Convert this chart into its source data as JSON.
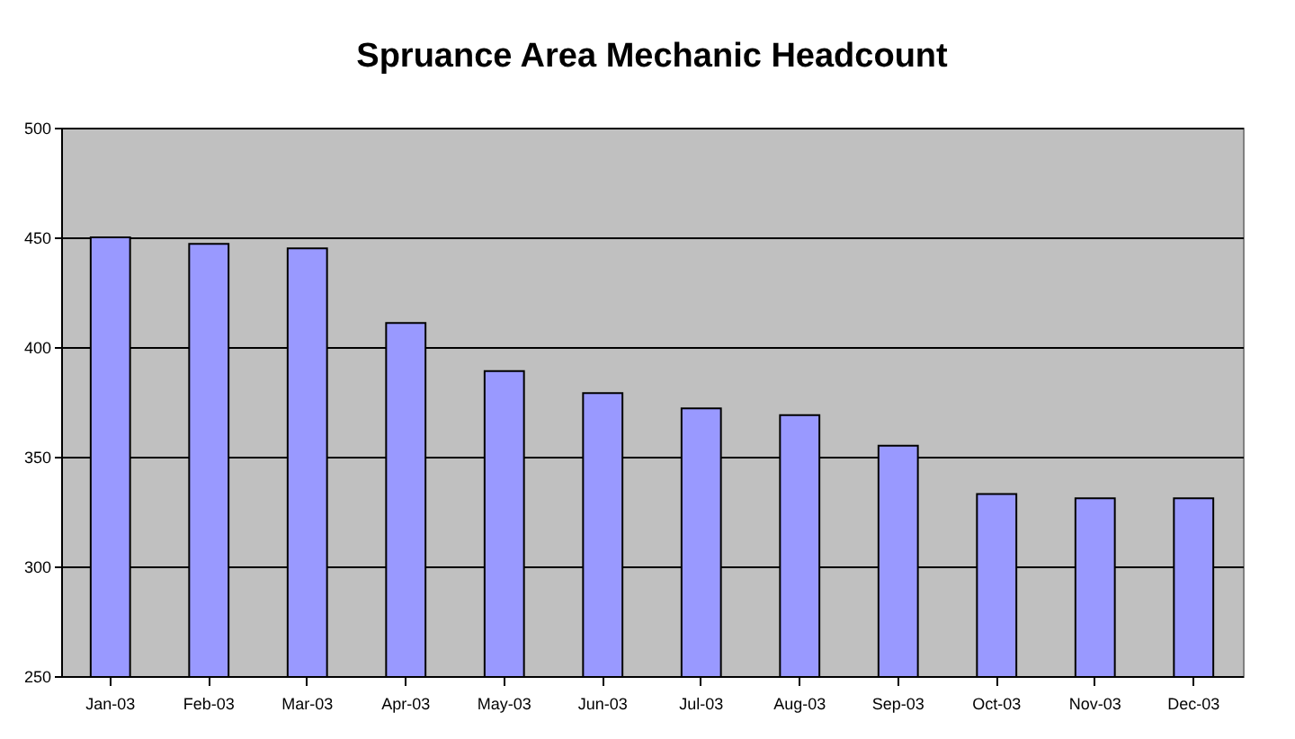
{
  "chart_data": {
    "type": "bar",
    "title": "Spruance Area Mechanic Headcount",
    "categories": [
      "Jan-03",
      "Feb-03",
      "Mar-03",
      "Apr-03",
      "May-03",
      "Jun-03",
      "Jul-03",
      "Aug-03",
      "Sep-03",
      "Oct-03",
      "Nov-03",
      "Dec-03"
    ],
    "values": [
      450,
      447,
      445,
      411,
      389,
      379,
      372,
      369,
      355,
      333,
      331,
      331
    ],
    "color": "#9999ff",
    "ylim": [
      250,
      500
    ],
    "yticks": [
      250,
      300,
      350,
      400,
      450,
      500
    ],
    "grid": "y"
  }
}
